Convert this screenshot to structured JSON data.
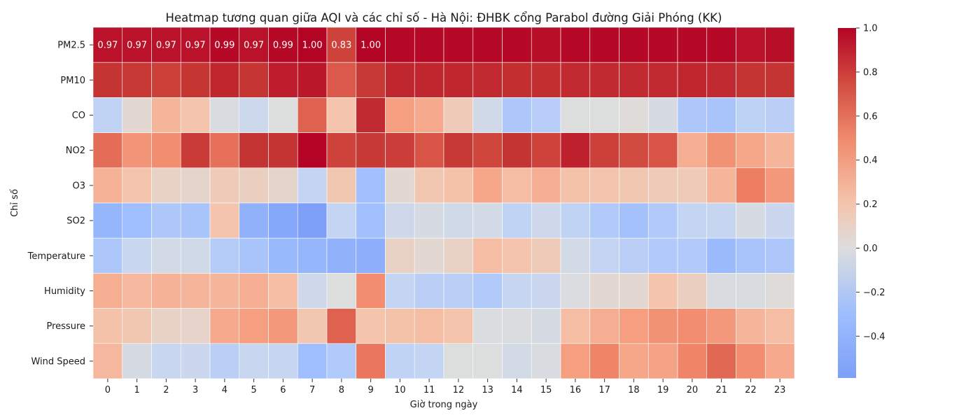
{
  "chart_data": {
    "type": "heatmap",
    "title": "Heatmap tương quan giữa AQI và các chỉ số - Hà Nội: ĐHBK cổng Parabol đường Giải Phóng (KK)",
    "xlabel": "Giờ trong ngày",
    "ylabel": "Chỉ số",
    "x": [
      "0",
      "1",
      "2",
      "3",
      "4",
      "5",
      "6",
      "7",
      "8",
      "9",
      "10",
      "11",
      "12",
      "13",
      "14",
      "15",
      "16",
      "17",
      "18",
      "19",
      "20",
      "21",
      "22",
      "23"
    ],
    "y": [
      "PM2.5",
      "PM10",
      "CO",
      "NO2",
      "O3",
      "SO2",
      "Temperature",
      "Humidity",
      "Pressure",
      "Wind Speed"
    ],
    "values": [
      [
        0.97,
        0.97,
        0.97,
        0.97,
        0.99,
        0.97,
        0.99,
        1.0,
        0.83,
        1.0,
        0.99,
        0.99,
        0.99,
        0.99,
        0.99,
        0.98,
        0.99,
        0.99,
        0.99,
        0.99,
        0.99,
        0.99,
        0.97,
        0.98
      ],
      [
        0.9,
        0.88,
        0.85,
        0.89,
        0.93,
        0.89,
        0.95,
        0.96,
        0.75,
        0.88,
        0.93,
        0.93,
        0.93,
        0.92,
        0.91,
        0.91,
        0.92,
        0.92,
        0.92,
        0.92,
        0.93,
        0.92,
        0.9,
        0.9
      ],
      [
        -0.22,
        0.05,
        0.3,
        0.2,
        -0.03,
        -0.13,
        0.0,
        0.72,
        0.2,
        0.92,
        0.45,
        0.38,
        0.15,
        -0.1,
        -0.32,
        -0.27,
        0.0,
        0.0,
        0.02,
        -0.05,
        -0.32,
        -0.35,
        -0.23,
        -0.25
      ],
      [
        0.68,
        0.5,
        0.55,
        0.87,
        0.67,
        0.9,
        0.9,
        1.0,
        0.83,
        0.88,
        0.86,
        0.77,
        0.88,
        0.82,
        0.9,
        0.83,
        0.94,
        0.85,
        0.8,
        0.77,
        0.35,
        0.52,
        0.4,
        0.3
      ],
      [
        0.32,
        0.2,
        0.1,
        0.07,
        0.15,
        0.12,
        0.07,
        -0.2,
        0.18,
        -0.38,
        0.05,
        0.18,
        0.22,
        0.4,
        0.25,
        0.35,
        0.22,
        0.2,
        0.18,
        0.15,
        0.15,
        0.3,
        0.62,
        0.48
      ],
      [
        -0.45,
        -0.4,
        -0.32,
        -0.35,
        0.2,
        -0.48,
        -0.55,
        -0.6,
        -0.2,
        -0.38,
        -0.12,
        -0.05,
        -0.1,
        -0.08,
        -0.22,
        -0.12,
        -0.22,
        -0.3,
        -0.37,
        -0.3,
        -0.2,
        -0.18,
        -0.05,
        -0.15
      ],
      [
        -0.32,
        -0.17,
        -0.08,
        -0.1,
        -0.28,
        -0.35,
        -0.43,
        -0.45,
        -0.48,
        -0.5,
        0.1,
        0.05,
        0.1,
        0.25,
        0.2,
        0.15,
        -0.08,
        -0.2,
        -0.25,
        -0.3,
        -0.3,
        -0.42,
        -0.35,
        -0.32
      ],
      [
        0.35,
        0.28,
        0.32,
        0.3,
        0.3,
        0.35,
        0.25,
        -0.12,
        0.0,
        0.55,
        -0.2,
        -0.25,
        -0.25,
        -0.3,
        -0.18,
        -0.15,
        -0.02,
        0.05,
        0.05,
        0.2,
        0.12,
        -0.03,
        -0.03,
        0.02
      ],
      [
        0.22,
        0.18,
        0.1,
        0.08,
        0.38,
        0.45,
        0.48,
        0.18,
        0.72,
        0.2,
        0.22,
        0.25,
        0.2,
        -0.02,
        -0.02,
        -0.05,
        0.25,
        0.35,
        0.45,
        0.52,
        0.55,
        0.48,
        0.3,
        0.25
      ],
      [
        0.28,
        -0.05,
        -0.17,
        -0.15,
        -0.25,
        -0.17,
        -0.18,
        -0.4,
        -0.3,
        0.65,
        -0.22,
        -0.2,
        0.0,
        0.0,
        -0.08,
        -0.03,
        0.45,
        0.6,
        0.4,
        0.42,
        0.6,
        0.7,
        0.55,
        0.38
      ]
    ],
    "annotated_rows": [
      0
    ],
    "annotated_cols": [
      0,
      1,
      2,
      3,
      4,
      5,
      6,
      7,
      8,
      9
    ],
    "annotation_labels": [
      "0.97",
      "0.97",
      "0.97",
      "0.97",
      "0.99",
      "0.97",
      "0.99",
      "1.00",
      "0.83",
      "1.00"
    ],
    "colormap": "coolwarm",
    "vmin": -0.59,
    "vmax": 1.0,
    "center": 0,
    "colorbar_ticks": [
      1.0,
      0.8,
      0.6,
      0.4,
      0.2,
      0.0,
      -0.2,
      -0.4
    ],
    "colorbar_tick_labels": [
      "1.0",
      "0.8",
      "0.6",
      "0.4",
      "0.2",
      "0.0",
      "−0.2",
      "−0.4"
    ],
    "grid": false,
    "legend": "colorbar-right"
  }
}
